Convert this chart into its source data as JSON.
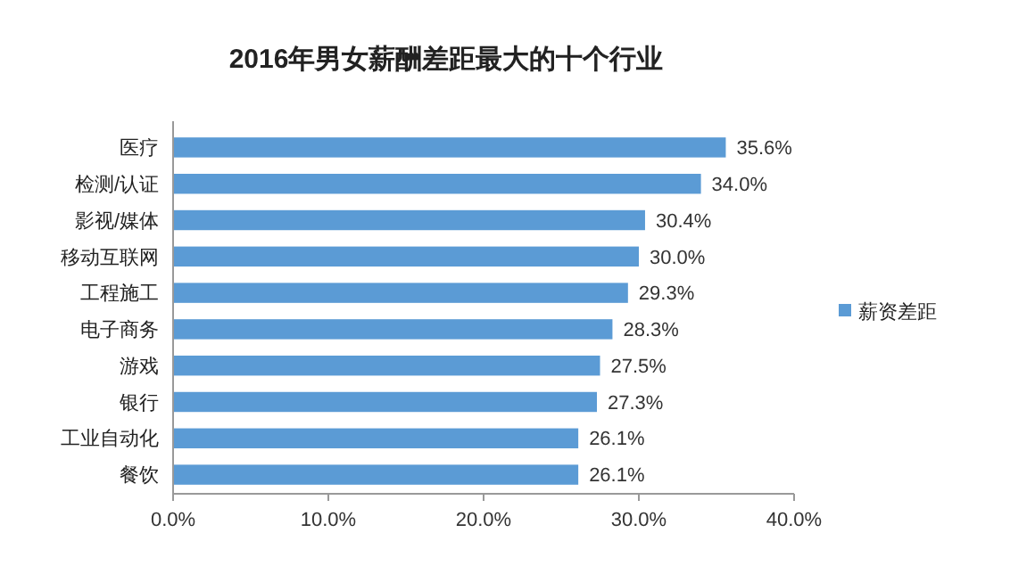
{
  "chart_data": {
    "type": "bar",
    "orientation": "horizontal",
    "title": "2016年男女薪酬差距最大的十个行业",
    "categories": [
      "医疗",
      "检测/认证",
      "影视/媒体",
      "移动互联网",
      "工程施工",
      "电子商务",
      "游戏",
      "银行",
      "工业自动化",
      "餐饮"
    ],
    "series": [
      {
        "name": "薪资差距",
        "color": "#5b9bd5",
        "values": [
          35.6,
          34.0,
          30.4,
          30.0,
          29.3,
          28.3,
          27.5,
          27.3,
          26.1,
          26.1
        ],
        "value_labels": [
          "35.6%",
          "34.0%",
          "30.4%",
          "30.0%",
          "29.3%",
          "28.3%",
          "27.5%",
          "27.3%",
          "26.1%",
          "26.1%"
        ]
      }
    ],
    "xlim": [
      0,
      40
    ],
    "xticks": [
      {
        "value": 0,
        "label": "0.0%"
      },
      {
        "value": 10,
        "label": "10.0%"
      },
      {
        "value": 20,
        "label": "20.0%"
      },
      {
        "value": 30,
        "label": "30.0%"
      },
      {
        "value": 40,
        "label": "40.0%"
      }
    ],
    "grid": false,
    "legend": "right"
  }
}
